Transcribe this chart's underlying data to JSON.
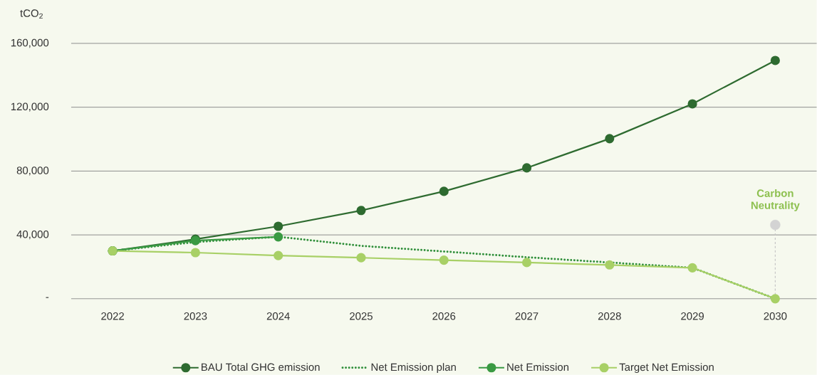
{
  "chart_data": {
    "type": "line",
    "ylabel": "tCO$_{2}$",
    "categories": [
      "2022",
      "2023",
      "2024",
      "2025",
      "2026",
      "2027",
      "2028",
      "2029",
      "2030"
    ],
    "series": [
      {
        "name": "BAU Total GHG emission",
        "color": "#2e6b30",
        "values": [
          30000,
          37300,
          45400,
          55300,
          67300,
          82000,
          100300,
          122100,
          149300
        ]
      },
      {
        "name": "Net Emission plan",
        "color": "#2f8f3a",
        "line_style": "dotted",
        "marker": "none",
        "values": [
          30000,
          35500,
          38800,
          33100,
          29600,
          26000,
          22700,
          19400,
          0
        ]
      },
      {
        "name": "Net Emission",
        "color": "#3a9a43",
        "values": [
          30000,
          36400,
          38800,
          null,
          null,
          null,
          null,
          null,
          null
        ]
      },
      {
        "name": "Target Net Emission",
        "color": "#a8d066",
        "values": [
          30000,
          28900,
          27100,
          25700,
          24200,
          22700,
          21200,
          19400,
          0
        ]
      },
      {
        "type": "scatter",
        "color": "#d3d3d3",
        "values": [
          null,
          null,
          null,
          null,
          null,
          null,
          null,
          null,
          46300
        ]
      }
    ],
    "ylim": [
      0,
      160000
    ],
    "yticks": [
      {
        "value": 0,
        "label": "-"
      },
      {
        "value": 40000,
        "label": "40,000"
      },
      {
        "value": 80000,
        "label": "80,000"
      },
      {
        "value": 120000,
        "label": "120,000"
      },
      {
        "value": 160000,
        "label": "160,000"
      }
    ],
    "grid": "y",
    "legend": "bottom",
    "marker": "circle",
    "line_style": "solid",
    "annotations": [
      {
        "text": "Carbon Neutrality",
        "x": "2030",
        "y": 46300
      }
    ]
  }
}
